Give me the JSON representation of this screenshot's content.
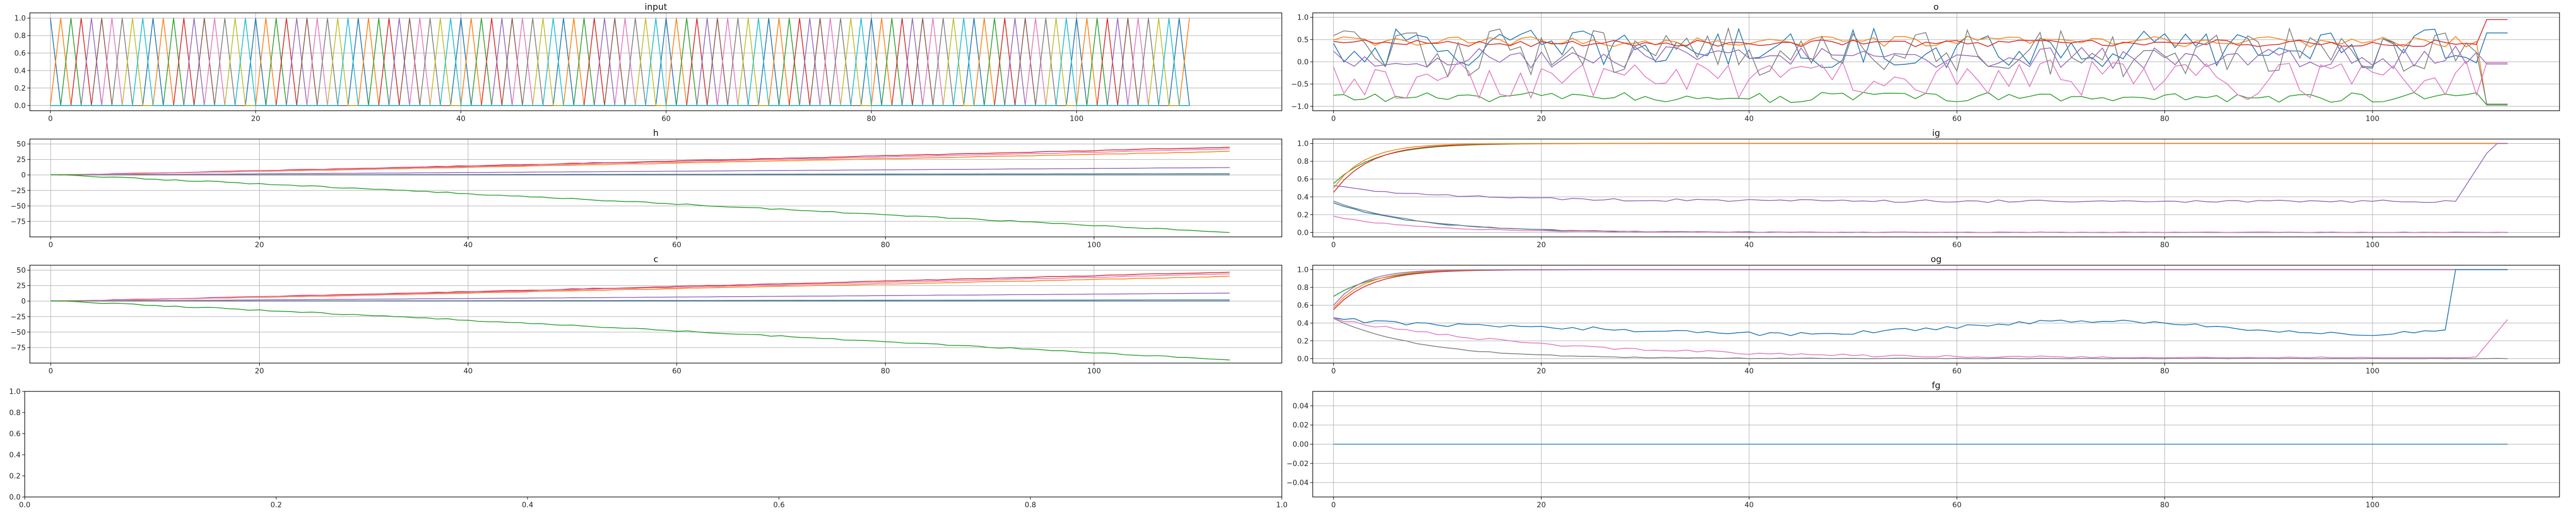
{
  "chart_data": [
    {
      "id": "input",
      "type": "line",
      "title": "input",
      "xlim": [
        -2,
        120
      ],
      "ylim": [
        -0.06,
        1.06
      ],
      "grid": true,
      "xticks": [
        0,
        20,
        40,
        60,
        80,
        100
      ],
      "xtick_labels": [
        "0",
        "20",
        "40",
        "60",
        "80",
        "100"
      ],
      "yticks": [
        0,
        0.2,
        0.4,
        0.6,
        0.8,
        1.0
      ],
      "ytick_labels": [
        "0.0",
        "0.2",
        "0.4",
        "0.6",
        "0.8",
        "1.0"
      ],
      "x": [
        0,
        111
      ],
      "pattern": "one_hot_sequence",
      "series": [
        {
          "color": "#1f77b4"
        },
        {
          "color": "#ff7f0e"
        },
        {
          "color": "#2ca02c"
        },
        {
          "color": "#d62728"
        },
        {
          "color": "#9467bd"
        },
        {
          "color": "#8c564b"
        },
        {
          "color": "#e377c2"
        },
        {
          "color": "#7f7f7f"
        },
        {
          "color": "#bcbd22"
        },
        {
          "color": "#17becf"
        }
      ]
    },
    {
      "id": "o",
      "type": "line",
      "title": "o",
      "xlim": [
        -2,
        118
      ],
      "ylim": [
        -1.1,
        1.1
      ],
      "grid": true,
      "xticks": [
        0,
        20,
        40,
        60,
        80,
        100
      ],
      "xtick_labels": [
        "0",
        "20",
        "40",
        "60",
        "80",
        "100"
      ],
      "yticks": [
        -1.0,
        -0.5,
        0.0,
        0.5,
        1.0
      ],
      "ytick_labels": [
        "−1.0",
        "−0.5",
        "0.0",
        "0.5",
        "1.0"
      ],
      "x": [
        0,
        113
      ],
      "series": [
        {
          "color": "#1f77b4",
          "mean": 0.3,
          "amp": 0.45,
          "end": 0.65
        },
        {
          "color": "#ff7f0e",
          "mean": 0.45,
          "amp": 0.12,
          "end": -0.97
        },
        {
          "color": "#2ca02c",
          "mean": -0.8,
          "amp": 0.12,
          "end": -0.97
        },
        {
          "color": "#d62728",
          "mean": 0.42,
          "amp": 0.08,
          "end": 0.95
        },
        {
          "color": "#9467bd",
          "mean": 0.1,
          "amp": 0.25,
          "end": -0.05
        },
        {
          "color": "#e377c2",
          "mean": -0.4,
          "amp": 0.45,
          "end": -0.02
        },
        {
          "color": "#7f7f7f",
          "mean": 0.2,
          "amp": 0.55,
          "end": -0.95
        }
      ]
    },
    {
      "id": "h",
      "type": "line",
      "title": "h",
      "xlim": [
        -2,
        118
      ],
      "ylim": [
        -100,
        58
      ],
      "grid": true,
      "xticks": [
        0,
        20,
        40,
        60,
        80,
        100
      ],
      "xtick_labels": [
        "0",
        "20",
        "40",
        "60",
        "80",
        "100"
      ],
      "yticks": [
        -75,
        -50,
        -25,
        0,
        25,
        50
      ],
      "ytick_labels": [
        "−75",
        "−50",
        "−25",
        "0",
        "25",
        "50"
      ],
      "x": [
        0,
        113
      ],
      "series": [
        {
          "color": "#d62728",
          "end": 45
        },
        {
          "color": "#ff7f0e",
          "end": 38
        },
        {
          "color": "#e377c2",
          "end": 42
        },
        {
          "color": "#9467bd",
          "end": 12
        },
        {
          "color": "#1f77b4",
          "end": 2
        },
        {
          "color": "#7f7f7f",
          "end": 0
        },
        {
          "color": "#2ca02c",
          "end": -93
        }
      ]
    },
    {
      "id": "ig",
      "type": "line",
      "title": "ig",
      "xlim": [
        -2,
        118
      ],
      "ylim": [
        -0.05,
        1.05
      ],
      "grid": true,
      "xticks": [
        0,
        20,
        40,
        60,
        80,
        100
      ],
      "xtick_labels": [
        "0",
        "20",
        "40",
        "60",
        "80",
        "100"
      ],
      "yticks": [
        0,
        0.2,
        0.4,
        0.6,
        0.8,
        1.0
      ],
      "ytick_labels": [
        "0.0",
        "0.2",
        "0.4",
        "0.6",
        "0.8",
        "1.0"
      ],
      "x": [
        0,
        113
      ],
      "series": [
        {
          "color": "#2ca02c",
          "start": 0.55,
          "end": 1.0
        },
        {
          "color": "#d62728",
          "start": 0.45,
          "end": 1.0
        },
        {
          "color": "#ff7f0e",
          "start": 0.5,
          "end": 1.0
        },
        {
          "color": "#9467bd",
          "start": 0.52,
          "end": 1.0
        },
        {
          "color": "#1f77b4",
          "start": 0.33,
          "end": 0.0
        },
        {
          "color": "#7f7f7f",
          "start": 0.35,
          "end": 0.0
        },
        {
          "color": "#e377c2",
          "start": 0.18,
          "end": 0.0
        }
      ]
    },
    {
      "id": "c",
      "type": "line",
      "title": "c",
      "xlim": [
        -2,
        118
      ],
      "ylim": [
        -100,
        58
      ],
      "grid": true,
      "xticks": [
        0,
        20,
        40,
        60,
        80,
        100
      ],
      "xtick_labels": [
        "0",
        "20",
        "40",
        "60",
        "80",
        "100"
      ],
      "yticks": [
        -75,
        -50,
        -25,
        0,
        25,
        50
      ],
      "ytick_labels": [
        "−75",
        "−50",
        "−25",
        "0",
        "25",
        "50"
      ],
      "x": [
        0,
        113
      ],
      "series": [
        {
          "color": "#d62728",
          "end": 47
        },
        {
          "color": "#ff7f0e",
          "end": 40
        },
        {
          "color": "#e377c2",
          "end": 44
        },
        {
          "color": "#9467bd",
          "end": 13
        },
        {
          "color": "#1f77b4",
          "end": 2
        },
        {
          "color": "#7f7f7f",
          "end": 0
        },
        {
          "color": "#2ca02c",
          "end": -95
        }
      ]
    },
    {
      "id": "og",
      "type": "line",
      "title": "og",
      "xlim": [
        -2,
        118
      ],
      "ylim": [
        -0.05,
        1.05
      ],
      "grid": true,
      "xticks": [
        0,
        20,
        40,
        60,
        80,
        100
      ],
      "xtick_labels": [
        "0",
        "20",
        "40",
        "60",
        "80",
        "100"
      ],
      "yticks": [
        0,
        0.2,
        0.4,
        0.6,
        0.8,
        1.0
      ],
      "ytick_labels": [
        "0.0",
        "0.2",
        "0.4",
        "0.6",
        "0.8",
        "1.0"
      ],
      "x": [
        0,
        113
      ],
      "series": [
        {
          "color": "#2ca02c",
          "start": 0.7,
          "end": 1.0
        },
        {
          "color": "#d62728",
          "start": 0.55,
          "end": 1.0
        },
        {
          "color": "#ff7f0e",
          "start": 0.57,
          "end": 1.0
        },
        {
          "color": "#9467bd",
          "start": 0.6,
          "end": 1.0
        },
        {
          "color": "#1f77b4",
          "start": 0.45,
          "end": 1.0
        },
        {
          "color": "#7f7f7f",
          "start": 0.45,
          "end": 0.0
        },
        {
          "color": "#e377c2",
          "start": 0.45,
          "end": 0.45
        }
      ]
    },
    {
      "id": "empty",
      "type": "line",
      "title": "",
      "xlim": [
        0,
        1
      ],
      "ylim": [
        0,
        1
      ],
      "grid": false,
      "xticks": [
        0,
        0.2,
        0.4,
        0.6,
        0.8,
        1.0
      ],
      "xtick_labels": [
        "0.0",
        "0.2",
        "0.4",
        "0.6",
        "0.8",
        "1.0"
      ],
      "yticks": [
        0,
        0.2,
        0.4,
        0.6,
        0.8,
        1.0
      ],
      "ytick_labels": [
        "0.0",
        "0.2",
        "0.4",
        "0.6",
        "0.8",
        "1.0"
      ],
      "series": []
    },
    {
      "id": "fg",
      "type": "line",
      "title": "fg",
      "xlim": [
        -2,
        118
      ],
      "ylim": [
        -0.055,
        0.055
      ],
      "grid": true,
      "xticks": [
        0,
        20,
        40,
        60,
        80,
        100
      ],
      "xtick_labels": [
        "0",
        "20",
        "40",
        "60",
        "80",
        "100"
      ],
      "yticks": [
        -0.04,
        -0.02,
        0.0,
        0.02,
        0.04
      ],
      "ytick_labels": [
        "−0.04",
        "−0.02",
        "0.00",
        "0.02",
        "0.04"
      ],
      "x": [
        0,
        113
      ],
      "series": [
        {
          "color": "#1f77b4",
          "values": [
            0.0,
            0.0
          ]
        }
      ]
    }
  ]
}
